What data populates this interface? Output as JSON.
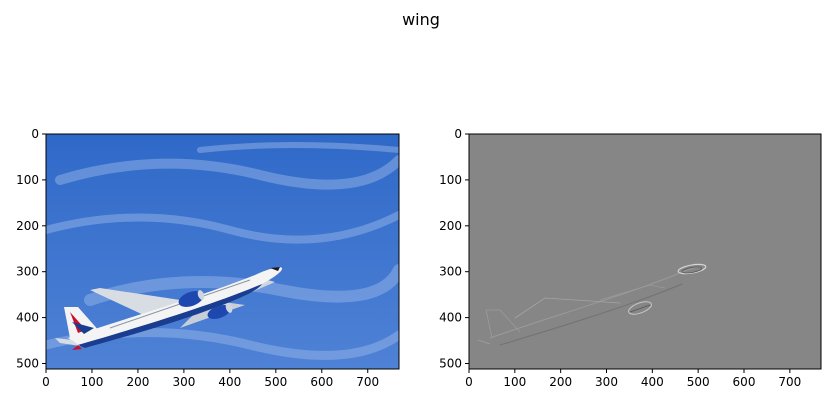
{
  "figure": {
    "suptitle": "wing"
  },
  "colors": {
    "sky_top": "#2f69c8",
    "sky_bottom": "#5b8ad8",
    "cloud": "#a9c4ee",
    "fuselage": "#f4f4f4",
    "belly": "#1a3d8f",
    "engine": "#1f47b0",
    "tail_red": "#c8102e",
    "edge_gray": "#868686",
    "edge_light": "#d9d9d9",
    "edge_dark": "#4a4a4a"
  },
  "chart_data": [
    {
      "type": "image",
      "panel": "left",
      "content": "photo of airliner climbing against blue sky",
      "xlim": [
        0,
        768
      ],
      "ylim": [
        512,
        0
      ],
      "xticks": [
        0,
        100,
        200,
        300,
        400,
        500,
        600,
        700
      ],
      "yticks": [
        0,
        100,
        200,
        300,
        400,
        500
      ],
      "xlabel": "",
      "ylabel": ""
    },
    {
      "type": "image",
      "panel": "right",
      "content": "edge-filtered gray image of airliner",
      "xlim": [
        0,
        768
      ],
      "ylim": [
        512,
        0
      ],
      "xticks": [
        0,
        100,
        200,
        300,
        400,
        500,
        600,
        700
      ],
      "yticks": [
        0,
        100,
        200,
        300,
        400,
        500
      ],
      "xlabel": "",
      "ylabel": ""
    }
  ]
}
